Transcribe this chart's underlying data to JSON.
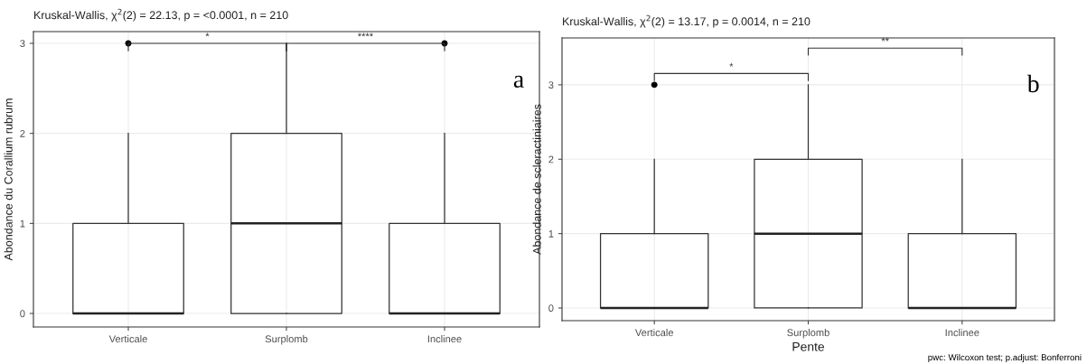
{
  "chart_data": [
    {
      "type": "box",
      "title": "Kruskal-Wallis, χ$^{2}$(2) = 22.13, p = <0.0001, n = 210",
      "ylabel": "Abondance du Corallium rubrum",
      "categories": [
        "Verticale",
        "Surplomb",
        "Inclinee"
      ],
      "boxes": [
        {
          "low": 0,
          "q1": 0,
          "median": 0,
          "q3": 1,
          "high": 2,
          "outliers": [
            3
          ]
        },
        {
          "low": 0,
          "q1": 0,
          "median": 1,
          "q3": 2,
          "high": 3
        },
        {
          "low": 0,
          "q1": 0,
          "median": 0,
          "q3": 1,
          "high": 2,
          "outliers": [
            3
          ]
        }
      ],
      "ylim": [
        -0.15,
        3.13
      ],
      "yticks": [
        0,
        1,
        2,
        3
      ],
      "grid": true,
      "annotations": [
        "*",
        "****",
        "a"
      ]
    },
    {
      "type": "box",
      "title": "Kruskal-Wallis, χ$^{2}$(2) = 13.17, p = 0.0014, n = 210",
      "ylabel": "Abondance de scleractiniaires",
      "xlabel": "Pente",
      "categories": [
        "Verticale",
        "Surplomb",
        "Inclinee"
      ],
      "boxes": [
        {
          "low": 0,
          "q1": 0,
          "median": 0,
          "q3": 1,
          "high": 2,
          "outliers": [
            3
          ]
        },
        {
          "low": 0,
          "q1": 0,
          "median": 1,
          "q3": 2,
          "high": 3
        },
        {
          "low": 0,
          "q1": 0,
          "median": 0,
          "q3": 1,
          "high": 2
        }
      ],
      "ylim": [
        -0.17,
        3.63
      ],
      "yticks": [
        0,
        1,
        2,
        3
      ],
      "grid": true,
      "annotations": [
        "*",
        "**",
        "b",
        "pwc: Wilcoxon test; p.adjust: Bonferroni"
      ]
    }
  ]
}
